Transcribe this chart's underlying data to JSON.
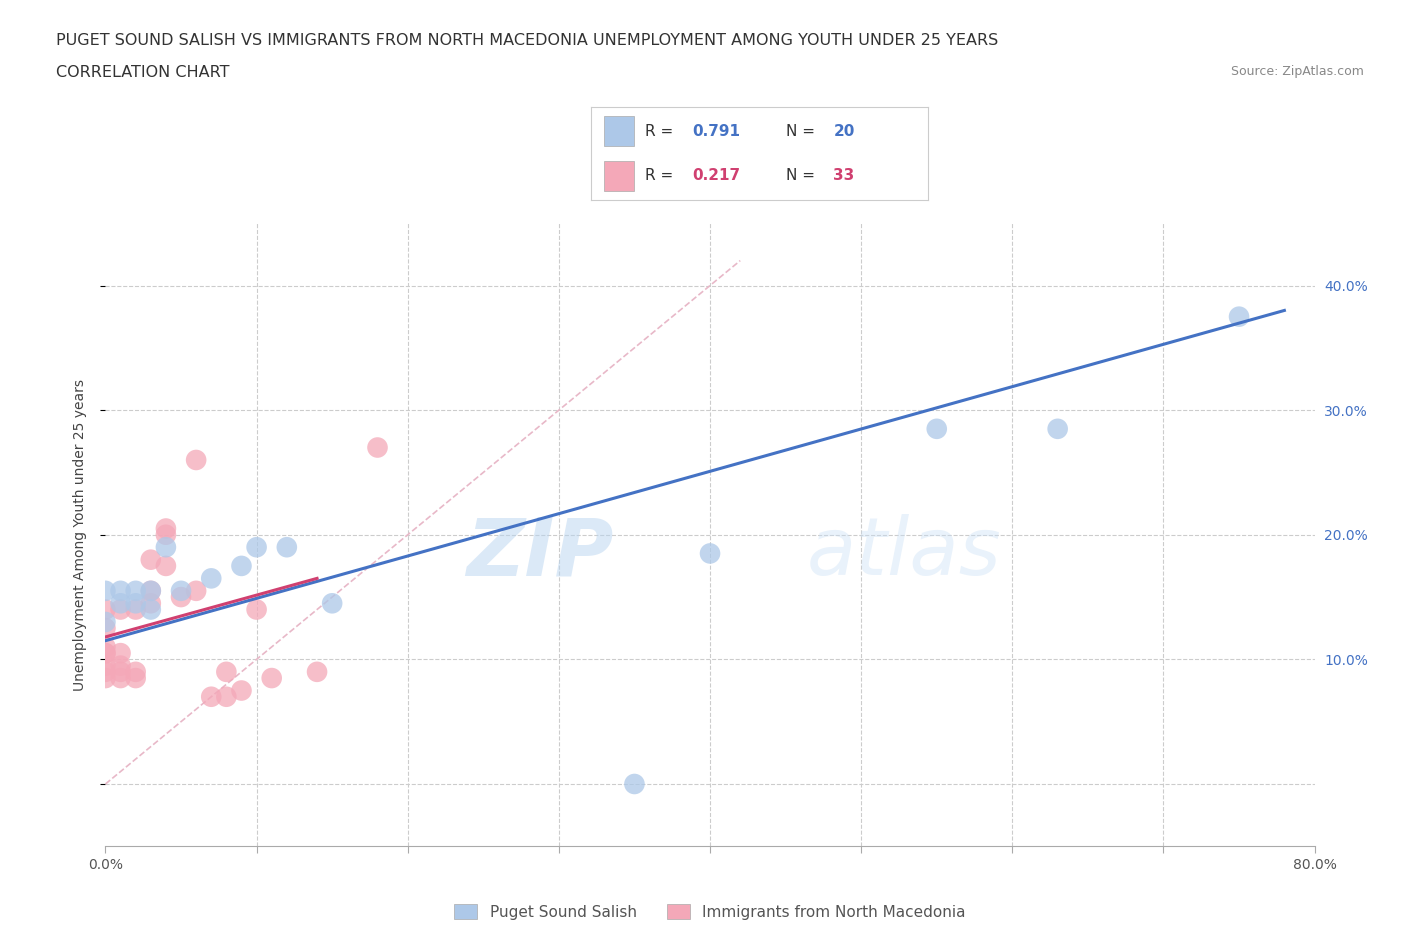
{
  "title_line1": "PUGET SOUND SALISH VS IMMIGRANTS FROM NORTH MACEDONIA UNEMPLOYMENT AMONG YOUTH UNDER 25 YEARS",
  "title_line2": "CORRELATION CHART",
  "source_text": "Source: ZipAtlas.com",
  "ylabel": "Unemployment Among Youth under 25 years",
  "xlim": [
    0.0,
    0.8
  ],
  "ylim": [
    -0.05,
    0.45
  ],
  "xticks": [
    0.0,
    0.1,
    0.2,
    0.3,
    0.4,
    0.5,
    0.6,
    0.7,
    0.8
  ],
  "xticklabels": [
    "0.0%",
    "",
    "",
    "",
    "",
    "",
    "",
    "",
    "80.0%"
  ],
  "yticks": [
    0.0,
    0.1,
    0.2,
    0.3,
    0.4
  ],
  "yticklabels_right": [
    "",
    "10.0%",
    "20.0%",
    "30.0%",
    "40.0%"
  ],
  "blue_label": "Puget Sound Salish",
  "pink_label": "Immigrants from North Macedonia",
  "blue_R": 0.791,
  "blue_N": 20,
  "pink_R": 0.217,
  "pink_N": 33,
  "blue_color": "#adc8e8",
  "pink_color": "#f4a8b8",
  "blue_line_color": "#4472c4",
  "pink_line_color": "#d04070",
  "ref_line_color": "#e8b8c8",
  "grid_color": "#cccccc",
  "background_color": "#ffffff",
  "title_fontsize": 11.5,
  "axis_label_fontsize": 10,
  "tick_fontsize": 10,
  "legend_fontsize": 12,
  "source_fontsize": 9,
  "blue_scatter_x": [
    0.0,
    0.0,
    0.01,
    0.01,
    0.02,
    0.02,
    0.03,
    0.03,
    0.04,
    0.05,
    0.07,
    0.09,
    0.1,
    0.12,
    0.15,
    0.35,
    0.4,
    0.55,
    0.63,
    0.75
  ],
  "blue_scatter_y": [
    0.155,
    0.13,
    0.145,
    0.155,
    0.145,
    0.155,
    0.14,
    0.155,
    0.19,
    0.155,
    0.165,
    0.175,
    0.19,
    0.19,
    0.145,
    0.0,
    0.185,
    0.285,
    0.285,
    0.375
  ],
  "pink_scatter_x": [
    0.0,
    0.0,
    0.0,
    0.0,
    0.0,
    0.0,
    0.0,
    0.0,
    0.01,
    0.01,
    0.01,
    0.01,
    0.01,
    0.02,
    0.02,
    0.02,
    0.03,
    0.03,
    0.03,
    0.04,
    0.04,
    0.04,
    0.05,
    0.06,
    0.06,
    0.07,
    0.08,
    0.08,
    0.09,
    0.1,
    0.11,
    0.14,
    0.18
  ],
  "pink_scatter_y": [
    0.085,
    0.09,
    0.095,
    0.105,
    0.105,
    0.11,
    0.125,
    0.14,
    0.085,
    0.09,
    0.095,
    0.105,
    0.14,
    0.085,
    0.09,
    0.14,
    0.145,
    0.155,
    0.18,
    0.175,
    0.2,
    0.205,
    0.15,
    0.155,
    0.26,
    0.07,
    0.07,
    0.09,
    0.075,
    0.14,
    0.085,
    0.09,
    0.27
  ],
  "blue_line_x": [
    0.0,
    0.78
  ],
  "blue_line_y": [
    0.115,
    0.38
  ],
  "pink_line_x": [
    0.0,
    0.14
  ],
  "pink_line_y": [
    0.118,
    0.165
  ],
  "ref_line_x": [
    0.0,
    0.42
  ],
  "ref_line_y": [
    0.0,
    0.42
  ]
}
